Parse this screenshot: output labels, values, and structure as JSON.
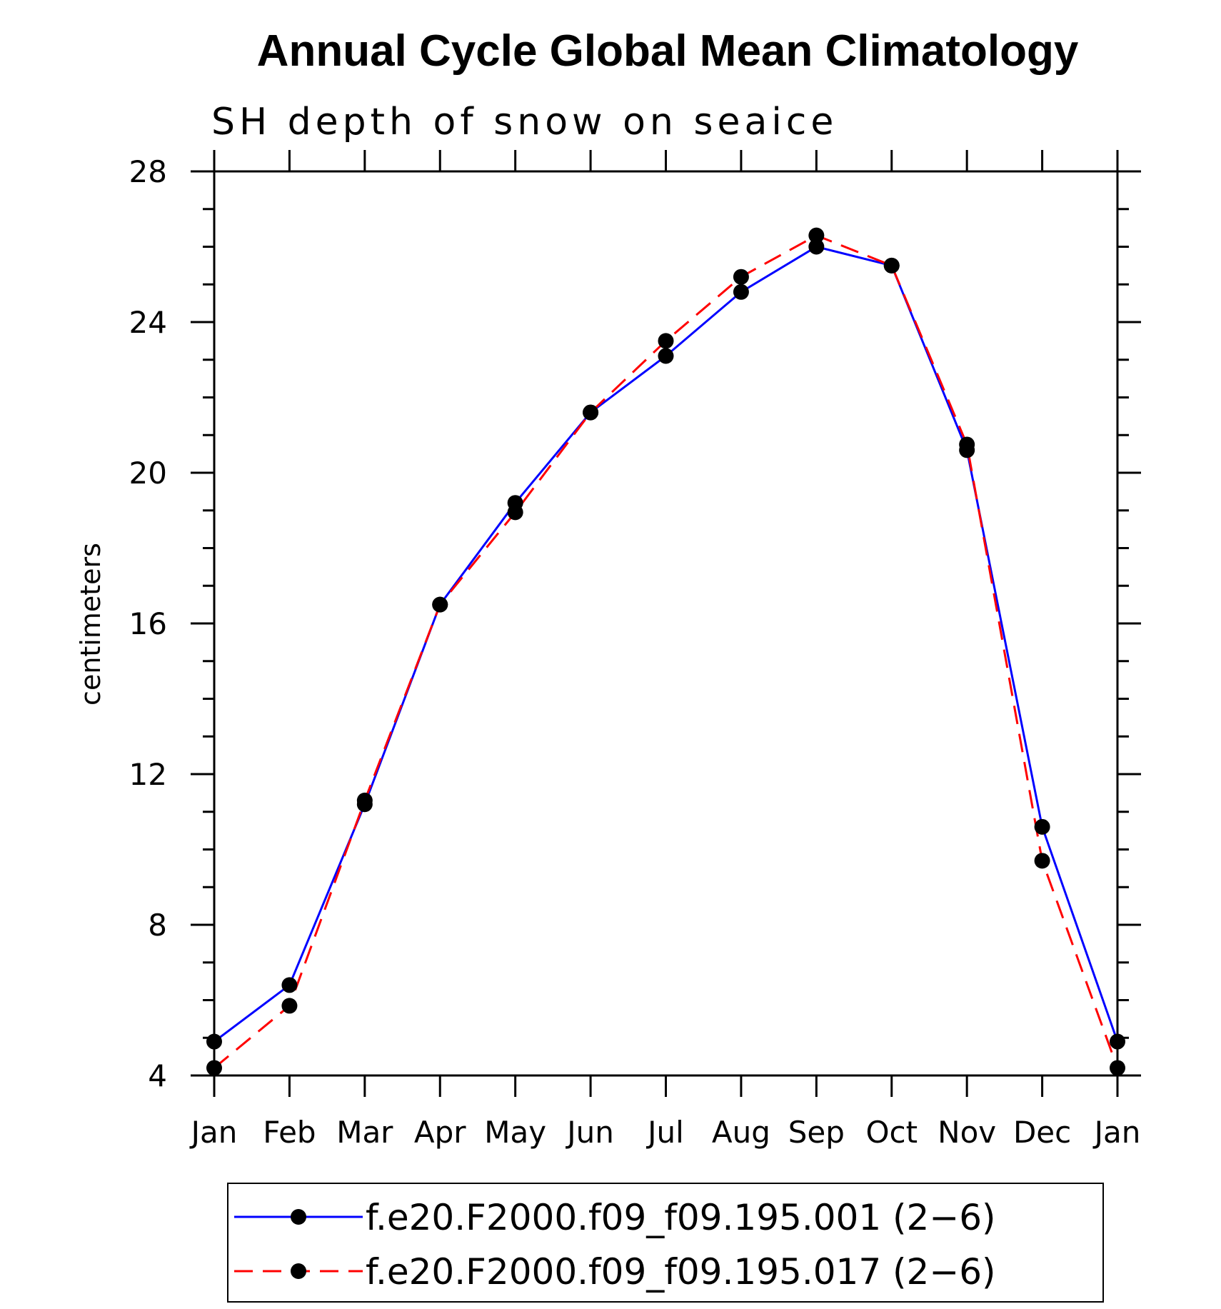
{
  "chart_data": {
    "type": "line",
    "title": "Annual Cycle Global Mean Climatology",
    "subtitle": "SH depth of snow on seaice",
    "xlabel": "",
    "ylabel": "centimeters",
    "categories": [
      "Jan",
      "Feb",
      "Mar",
      "Apr",
      "May",
      "Jun",
      "Jul",
      "Aug",
      "Sep",
      "Oct",
      "Nov",
      "Dec",
      "Jan"
    ],
    "ylim": [
      4,
      28
    ],
    "yticks": [
      "4",
      "8",
      "12",
      "16",
      "20",
      "24",
      "28"
    ],
    "grid": false,
    "legend_position": "bottom",
    "series": [
      {
        "name": "f.e20.F2000.f09_f09.195.001 (2−6)",
        "color": "#0000ff",
        "dash": "solid",
        "marker": "filled-circle",
        "values": [
          4.9,
          6.4,
          11.2,
          16.5,
          19.2,
          21.6,
          23.1,
          24.8,
          26.0,
          25.5,
          20.6,
          10.6,
          4.9
        ]
      },
      {
        "name": "f.e20.F2000.f09_f09.195.017 (2−6)",
        "color": "#ff0000",
        "dash": "dashed",
        "marker": "filled-circle",
        "values": [
          4.2,
          5.85,
          11.3,
          16.5,
          18.95,
          21.6,
          23.5,
          25.2,
          26.3,
          25.5,
          20.75,
          9.7,
          4.2
        ]
      }
    ]
  }
}
